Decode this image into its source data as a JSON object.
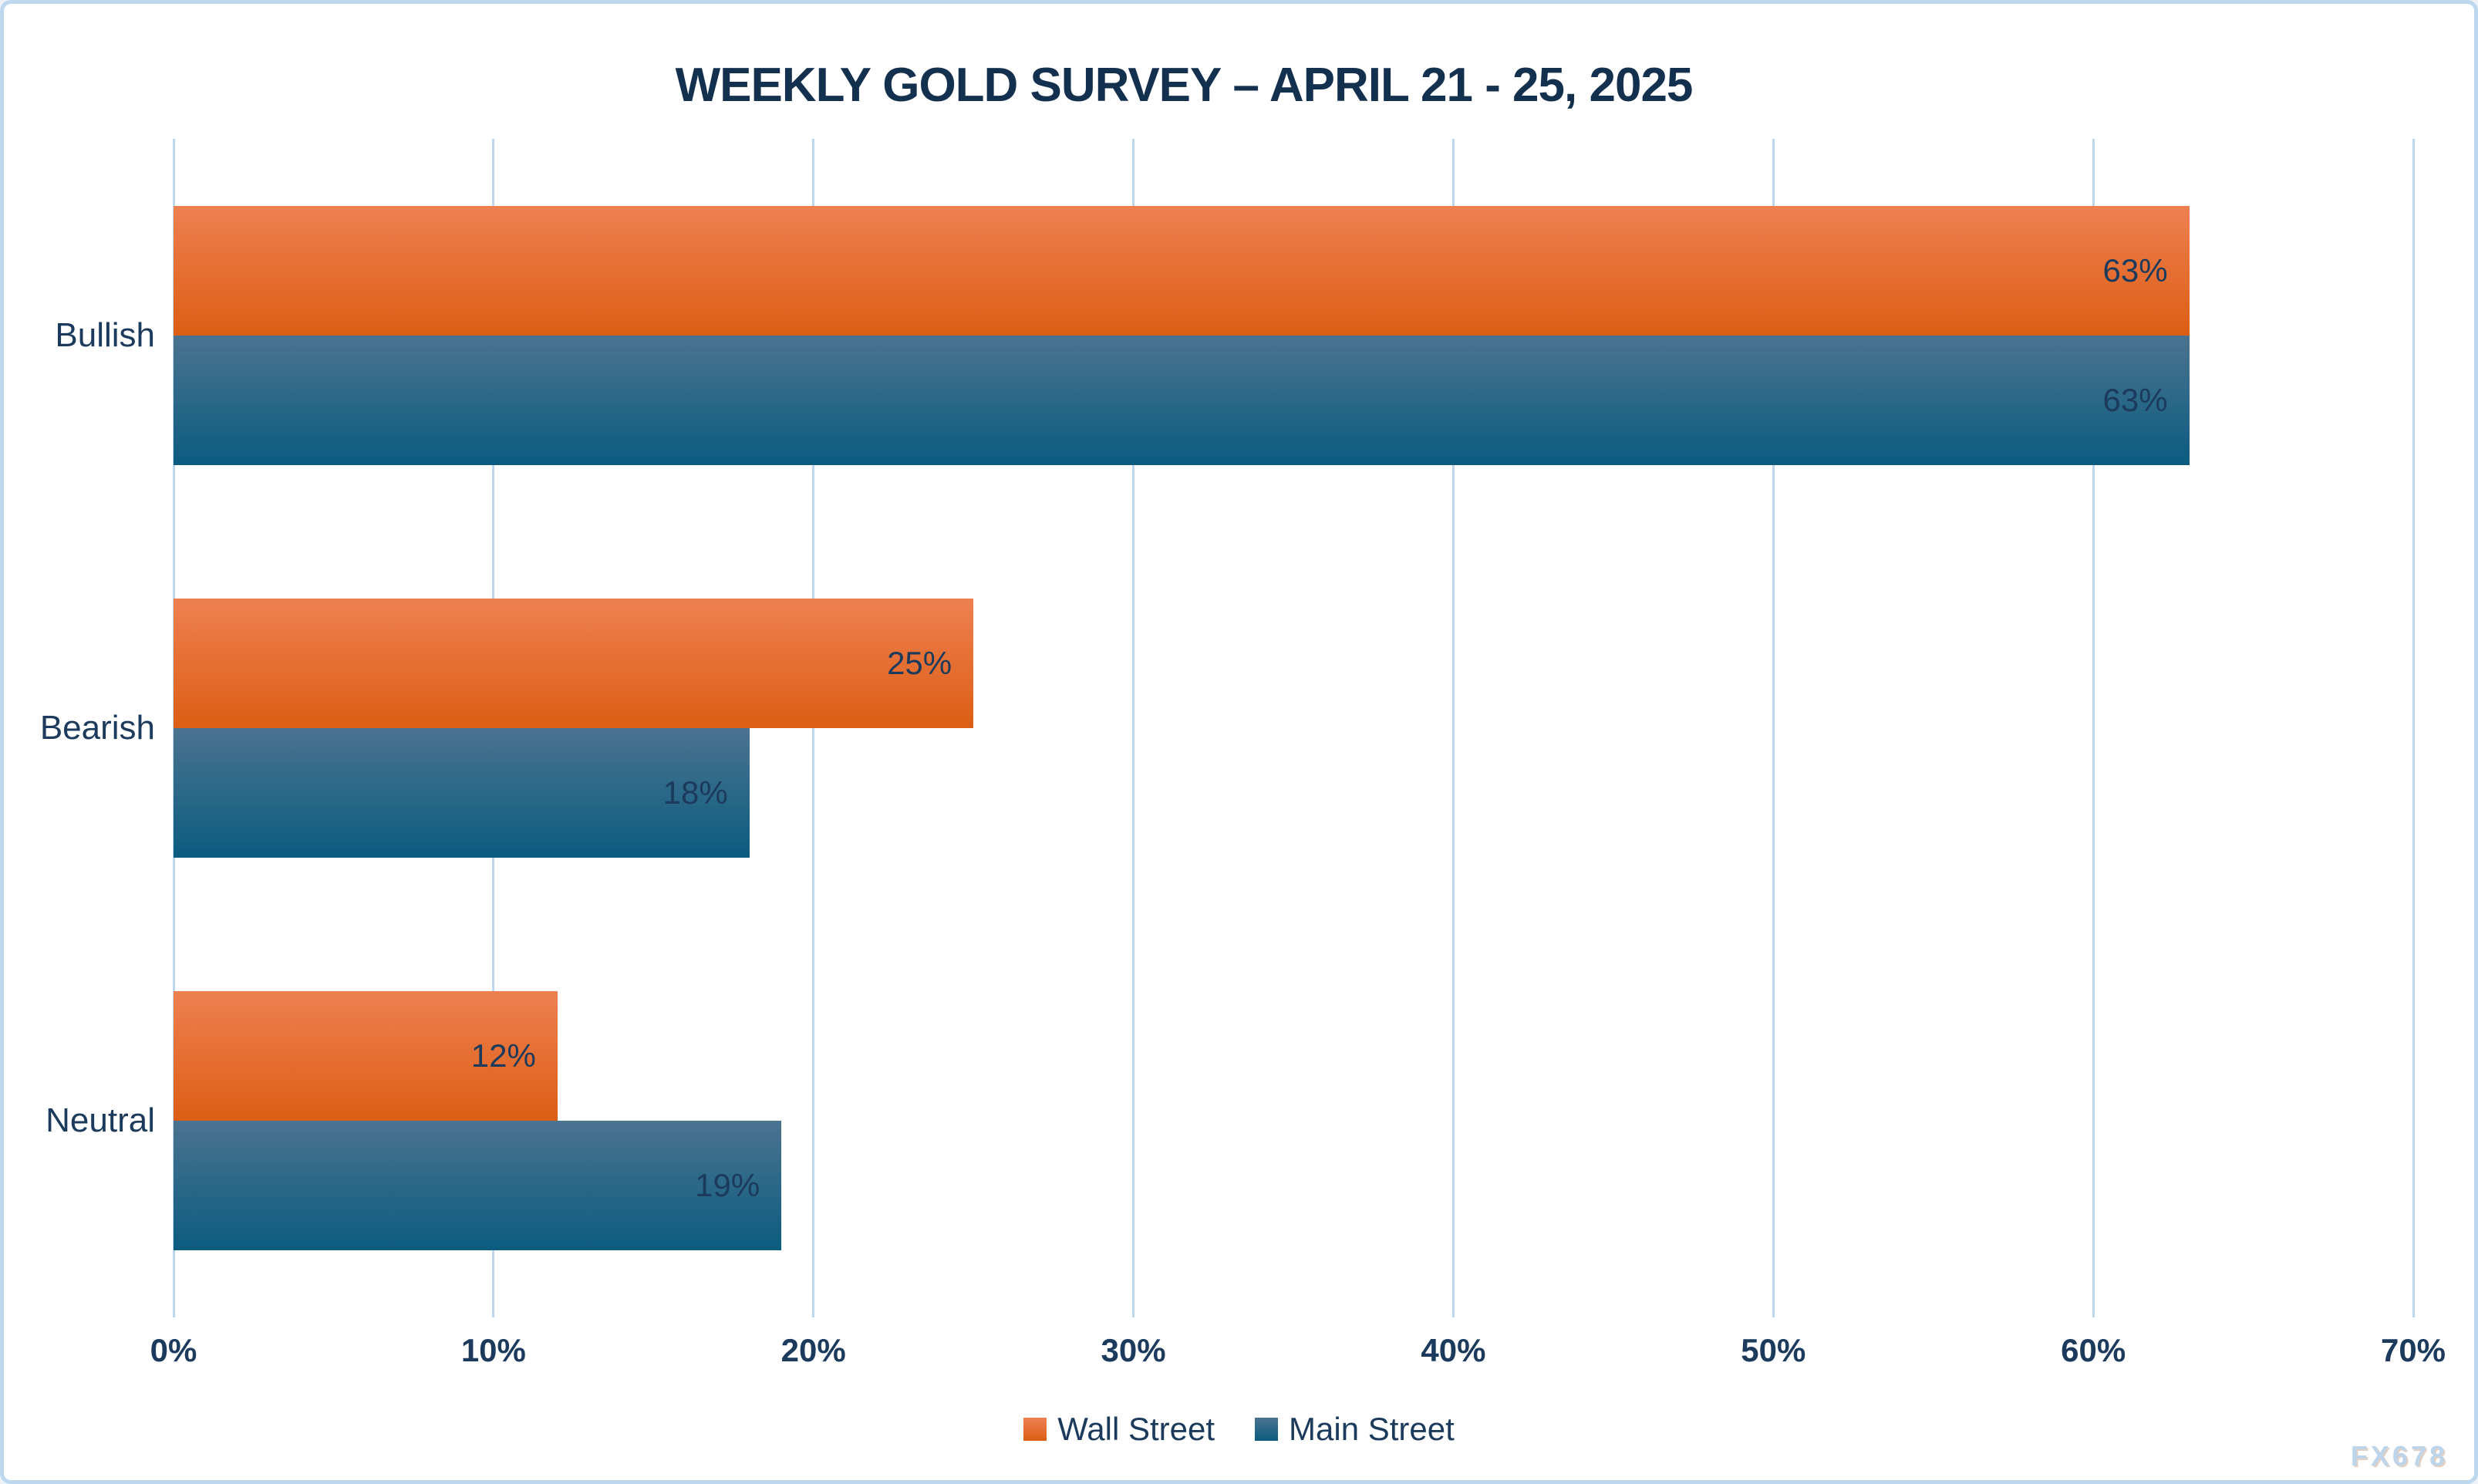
{
  "chart_data": {
    "type": "bar",
    "orientation": "horizontal",
    "title": "WEEKLY GOLD SURVEY – APRIL 21 - 25, 2025",
    "categories": [
      "Bullish",
      "Bearish",
      "Neutral"
    ],
    "series": [
      {
        "name": "Wall Street",
        "values": [
          63,
          25,
          12
        ],
        "gradient": [
          "#EE8051",
          "#DC5E14"
        ]
      },
      {
        "name": "Main Street",
        "values": [
          63,
          18,
          19
        ],
        "gradient": [
          "#4B7390",
          "#0B5C80"
        ]
      }
    ],
    "value_suffix": "%",
    "xlabel": "",
    "ylabel": "",
    "xlim": [
      0,
      70
    ],
    "xticks": [
      "0%",
      "10%",
      "20%",
      "30%",
      "40%",
      "50%",
      "60%",
      "70%"
    ],
    "grid": true,
    "legend_position": "bottom"
  },
  "colors": {
    "background": "#FFFFFF",
    "frame_border": "#BDD7EE",
    "gridline": "#BDD7EE",
    "text": "#1B3A5C",
    "title": "#14304F",
    "watermark": "#BDD5EB"
  },
  "watermark": "FX678"
}
